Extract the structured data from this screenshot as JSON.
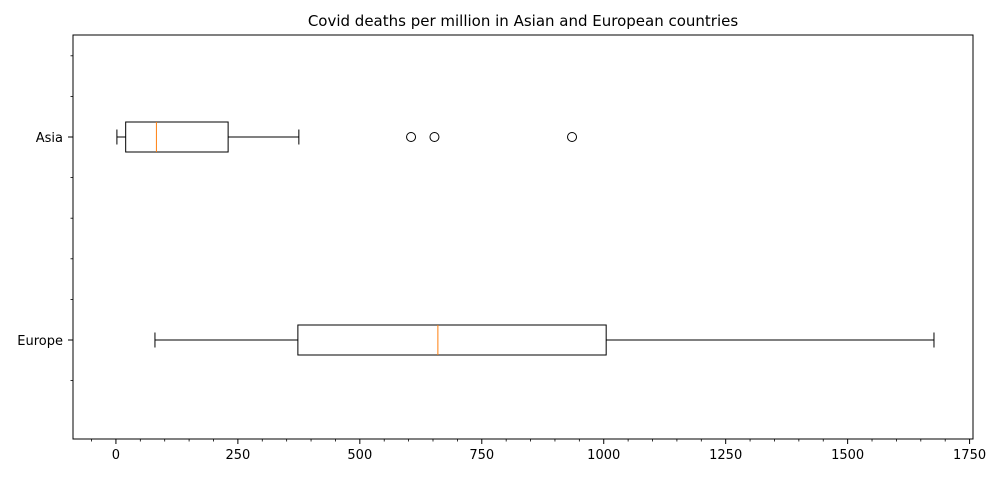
{
  "chart_data": {
    "type": "boxplot",
    "orientation": "horizontal",
    "title": "Covid deaths per million in Asian and European countries",
    "xlabel": "",
    "ylabel": "",
    "xlim": [
      -88,
      1757
    ],
    "xticks": [
      0,
      250,
      500,
      750,
      1000,
      1250,
      1500,
      1750
    ],
    "grid": false,
    "series": [
      {
        "name": "Asia",
        "whisker_low": 2,
        "q1": 20,
        "median": 83,
        "q3": 230,
        "whisker_high": 375,
        "outliers": [
          605,
          653,
          935
        ]
      },
      {
        "name": "Europe",
        "whisker_low": 80,
        "q1": 373,
        "median": 660,
        "q3": 1005,
        "whisker_high": 1677,
        "outliers": []
      }
    ],
    "colors": {
      "box": "#000000",
      "median": "#ff7f0e",
      "axis": "#000000"
    }
  }
}
